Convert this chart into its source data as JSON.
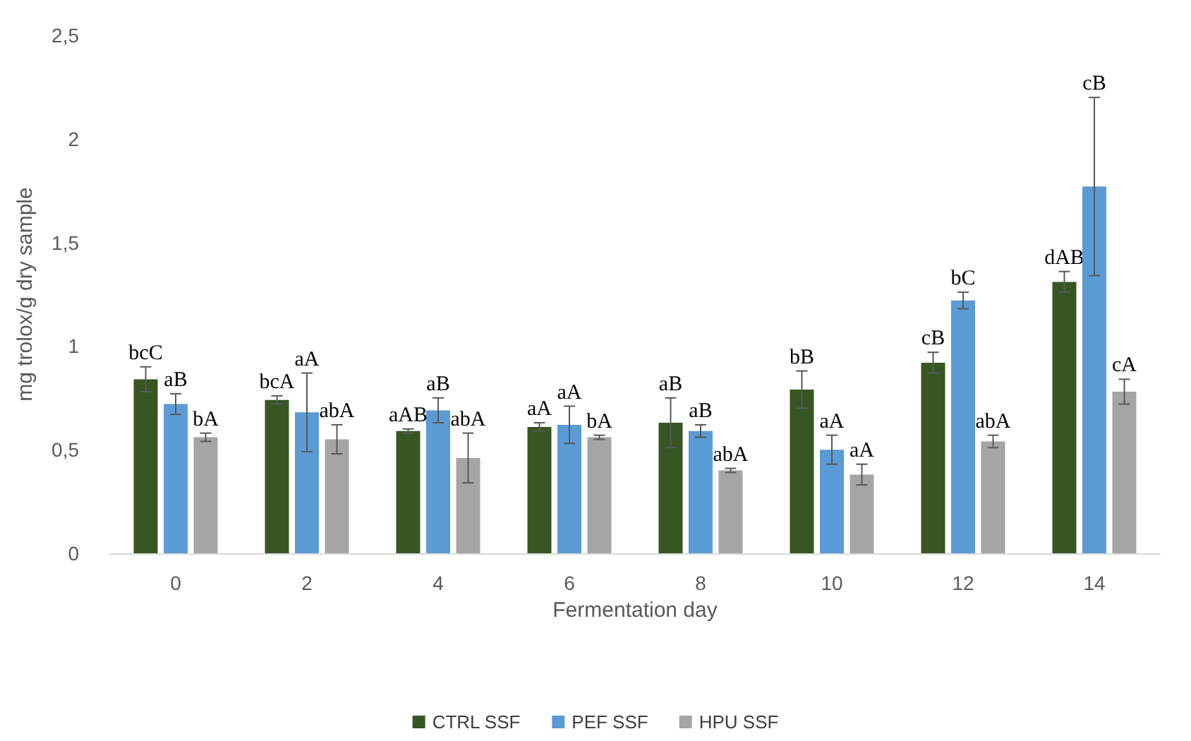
{
  "chart_data": {
    "type": "bar",
    "xlabel": "Fermentation day",
    "ylabel": "mg trolox/g dry sample",
    "categories": [
      "0",
      "2",
      "4",
      "6",
      "8",
      "10",
      "12",
      "14"
    ],
    "series": [
      {
        "name": "CTRL SSF",
        "color": "#375623",
        "values": [
          0.84,
          0.74,
          0.59,
          0.61,
          0.63,
          0.79,
          0.92,
          1.31
        ],
        "errors": [
          0.06,
          0.02,
          0.01,
          0.02,
          0.12,
          0.09,
          0.05,
          0.05
        ]
      },
      {
        "name": "PEF SSF",
        "color": "#5b9bd5",
        "values": [
          0.72,
          0.68,
          0.69,
          0.62,
          0.59,
          0.5,
          1.22,
          1.77
        ],
        "errors": [
          0.05,
          0.19,
          0.06,
          0.09,
          0.03,
          0.07,
          0.04,
          0.43
        ]
      },
      {
        "name": "HPU SSF",
        "color": "#a5a5a5",
        "values": [
          0.56,
          0.55,
          0.46,
          0.56,
          0.4,
          0.38,
          0.54,
          0.78
        ],
        "errors": [
          0.02,
          0.07,
          0.12,
          0.01,
          0.01,
          0.05,
          0.03,
          0.06
        ]
      }
    ],
    "ylim": [
      0,
      2.5
    ],
    "yticks": [
      0,
      {
        "value": 0.5,
        "label": "0,5"
      },
      1,
      {
        "value": 1.5,
        "label": "1,5"
      },
      2,
      {
        "value": 2.5,
        "label": "2,5"
      }
    ],
    "grid": false,
    "legend": "bottom",
    "annotations": [
      "bcC",
      "aB",
      "bA",
      "bcA",
      "aA",
      "abA",
      "aAB",
      "aB",
      "abA",
      "aA",
      "aA",
      "bA",
      "aB",
      "aB",
      "abA",
      "bB",
      "aA",
      "aA",
      "cB",
      "bC",
      "abA",
      "dAB",
      "cB",
      "cA"
    ]
  }
}
